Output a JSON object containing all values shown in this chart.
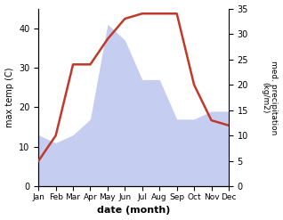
{
  "months": [
    "Jan",
    "Feb",
    "Mar",
    "Apr",
    "May",
    "Jun",
    "Jul",
    "Aug",
    "Sep",
    "Oct",
    "Nov",
    "Dec"
  ],
  "month_x": [
    1,
    2,
    3,
    4,
    5,
    6,
    7,
    8,
    9,
    10,
    11,
    12
  ],
  "temperature": [
    5,
    10,
    24,
    24,
    29,
    33,
    34,
    34,
    34,
    20,
    13,
    12
  ],
  "precipitation": [
    13,
    11,
    13,
    17,
    41,
    37,
    27,
    27,
    17,
    17,
    19,
    19
  ],
  "temp_color": "#c0392b",
  "precip_fill_color": "#c5cdf0",
  "ylabel_left": "max temp (C)",
  "ylabel_right": "med. precipitation\n(kg/m2)",
  "xlabel": "date (month)",
  "ylim_left": [
    0,
    45
  ],
  "ylim_right": [
    0,
    35
  ],
  "yticks_left": [
    0,
    10,
    20,
    30,
    40
  ],
  "yticks_right": [
    0,
    5,
    10,
    15,
    20,
    25,
    30,
    35
  ],
  "line_width": 1.8
}
